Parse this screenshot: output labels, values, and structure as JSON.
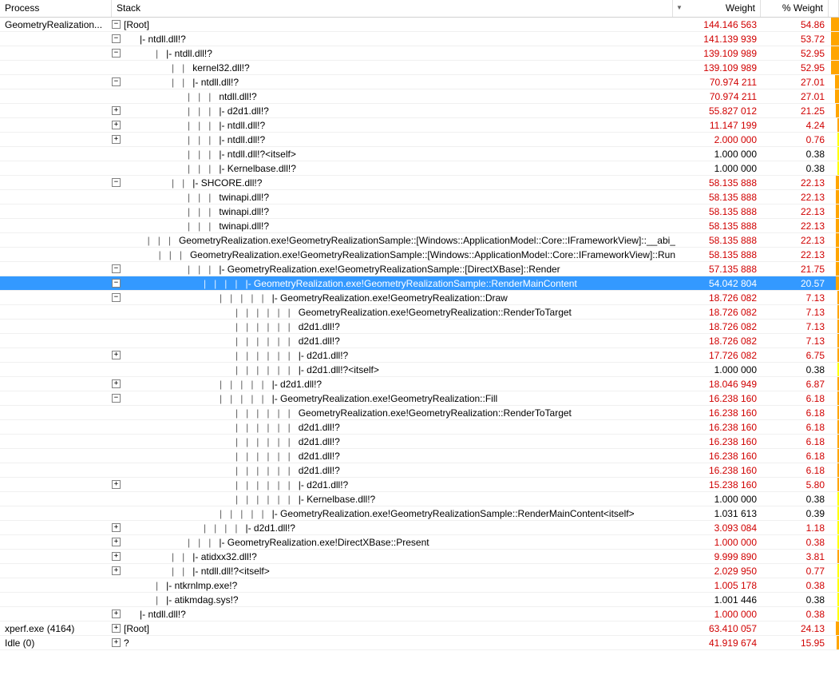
{
  "headers": {
    "process": "Process",
    "stack": "Stack",
    "weight": "Weight",
    "pct": "% Weight"
  },
  "colors": {
    "highlight": "#d00000",
    "selection_bg": "#3399ff",
    "bar_orange": "#ffa500",
    "bar_yellow": "#ffff00"
  },
  "bar_max": 54.86,
  "rows": [
    {
      "process": "GeometryRealization...",
      "exp": "-",
      "indent": 0,
      "pipes": "",
      "label": "[Root]",
      "weight": "144.146 563",
      "pct": "54.86",
      "hl": true,
      "bar": 54.86
    },
    {
      "process": "",
      "exp": "-",
      "indent": 1,
      "pipes": "",
      "label": "|- ntdll.dll!?",
      "weight": "141.139 939",
      "pct": "53.72",
      "hl": true,
      "bar": 53.72
    },
    {
      "process": "",
      "exp": "-",
      "indent": 2,
      "pipes": "|   ",
      "label": "|- ntdll.dll!?",
      "weight": "139.109 989",
      "pct": "52.95",
      "hl": true,
      "bar": 52.95
    },
    {
      "process": "",
      "exp": "",
      "indent": 3,
      "pipes": "|   |   ",
      "label": "kernel32.dll!?",
      "weight": "139.109 989",
      "pct": "52.95",
      "hl": true,
      "bar": 52.95
    },
    {
      "process": "",
      "exp": "-",
      "indent": 3,
      "pipes": "|   |   ",
      "label": "|- ntdll.dll!?",
      "weight": "70.974 211",
      "pct": "27.01",
      "hl": true,
      "bar": 27.01
    },
    {
      "process": "",
      "exp": "",
      "indent": 4,
      "pipes": "|   |   |   ",
      "label": "ntdll.dll!?",
      "weight": "70.974 211",
      "pct": "27.01",
      "hl": true,
      "bar": 27.01
    },
    {
      "process": "",
      "exp": "+",
      "indent": 4,
      "pipes": "|   |   |   ",
      "label": "|- d2d1.dll!?",
      "weight": "55.827 012",
      "pct": "21.25",
      "hl": true,
      "bar": 21.25
    },
    {
      "process": "",
      "exp": "+",
      "indent": 4,
      "pipes": "|   |   |   ",
      "label": "|- ntdll.dll!?",
      "weight": "11.147 199",
      "pct": "4.24",
      "hl": true,
      "bar": 4.24
    },
    {
      "process": "",
      "exp": "+",
      "indent": 4,
      "pipes": "|   |   |   ",
      "label": "|- ntdll.dll!?",
      "weight": "2.000 000",
      "pct": "0.76",
      "hl": true,
      "bar": 0.76
    },
    {
      "process": "",
      "exp": "",
      "indent": 4,
      "pipes": "|   |   |   ",
      "label": "|- ntdll.dll!?<itself>",
      "weight": "1.000 000",
      "pct": "0.38",
      "hl": false,
      "bar": 0.38
    },
    {
      "process": "",
      "exp": "",
      "indent": 4,
      "pipes": "|   |   |   ",
      "label": "|- Kernelbase.dll!?",
      "weight": "1.000 000",
      "pct": "0.38",
      "hl": false,
      "bar": 0.38
    },
    {
      "process": "",
      "exp": "-",
      "indent": 3,
      "pipes": "|   |   ",
      "label": "|- SHCORE.dll!?",
      "weight": "58.135 888",
      "pct": "22.13",
      "hl": true,
      "bar": 22.13
    },
    {
      "process": "",
      "exp": "",
      "indent": 4,
      "pipes": "|   |   |   ",
      "label": "twinapi.dll!?",
      "weight": "58.135 888",
      "pct": "22.13",
      "hl": true,
      "bar": 22.13
    },
    {
      "process": "",
      "exp": "",
      "indent": 4,
      "pipes": "|   |   |   ",
      "label": "twinapi.dll!?",
      "weight": "58.135 888",
      "pct": "22.13",
      "hl": true,
      "bar": 22.13
    },
    {
      "process": "",
      "exp": "",
      "indent": 4,
      "pipes": "|   |   |   ",
      "label": "twinapi.dll!?",
      "weight": "58.135 888",
      "pct": "22.13",
      "hl": true,
      "bar": 22.13
    },
    {
      "process": "",
      "exp": "",
      "indent": 4,
      "pipes": "|   |   |   ",
      "label": "GeometryRealization.exe!GeometryRealizationSample::[Windows::ApplicationModel::Core::IFrameworkView]::__abi_",
      "weight": "58.135 888",
      "pct": "22.13",
      "hl": true,
      "bar": 22.13
    },
    {
      "process": "",
      "exp": "",
      "indent": 4,
      "pipes": "|   |   |   ",
      "label": "GeometryRealization.exe!GeometryRealizationSample::[Windows::ApplicationModel::Core::IFrameworkView]::Run",
      "weight": "58.135 888",
      "pct": "22.13",
      "hl": true,
      "bar": 22.13
    },
    {
      "process": "",
      "exp": "-",
      "indent": 4,
      "pipes": "|   |   |   ",
      "label": "|- GeometryRealization.exe!GeometryRealizationSample::[DirectXBase]::Render",
      "weight": "57.135 888",
      "pct": "21.75",
      "hl": true,
      "bar": 21.75
    },
    {
      "process": "",
      "exp": "-",
      "indent": 5,
      "pipes": "|   |   |   |   ",
      "label": "|- GeometryRealization.exe!GeometryRealizationSample::RenderMainContent",
      "weight": "54.042 804",
      "pct": "20.57",
      "hl": true,
      "bar": 20.57,
      "sel": true
    },
    {
      "process": "",
      "exp": "-",
      "indent": 6,
      "pipes": "|   |   |   |   |   ",
      "label": "|- GeometryRealization.exe!GeometryRealization::Draw",
      "weight": "18.726 082",
      "pct": "7.13",
      "hl": true,
      "bar": 7.13
    },
    {
      "process": "",
      "exp": "",
      "indent": 7,
      "pipes": "|   |   |   |   |   |   ",
      "label": "GeometryRealization.exe!GeometryRealization::RenderToTarget",
      "weight": "18.726 082",
      "pct": "7.13",
      "hl": true,
      "bar": 7.13
    },
    {
      "process": "",
      "exp": "",
      "indent": 7,
      "pipes": "|   |   |   |   |   |   ",
      "label": "d2d1.dll!?",
      "weight": "18.726 082",
      "pct": "7.13",
      "hl": true,
      "bar": 7.13
    },
    {
      "process": "",
      "exp": "",
      "indent": 7,
      "pipes": "|   |   |   |   |   |   ",
      "label": "d2d1.dll!?",
      "weight": "18.726 082",
      "pct": "7.13",
      "hl": true,
      "bar": 7.13
    },
    {
      "process": "",
      "exp": "+",
      "indent": 7,
      "pipes": "|   |   |   |   |   |   ",
      "label": "|- d2d1.dll!?",
      "weight": "17.726 082",
      "pct": "6.75",
      "hl": true,
      "bar": 6.75
    },
    {
      "process": "",
      "exp": "",
      "indent": 7,
      "pipes": "|   |   |   |   |   |   ",
      "label": "|- d2d1.dll!?<itself>",
      "weight": "1.000 000",
      "pct": "0.38",
      "hl": false,
      "bar": 0.38
    },
    {
      "process": "",
      "exp": "+",
      "indent": 6,
      "pipes": "|   |   |   |   |   ",
      "label": "|- d2d1.dll!?",
      "weight": "18.046 949",
      "pct": "6.87",
      "hl": true,
      "bar": 6.87
    },
    {
      "process": "",
      "exp": "-",
      "indent": 6,
      "pipes": "|   |   |   |   |   ",
      "label": "|- GeometryRealization.exe!GeometryRealization::Fill",
      "weight": "16.238 160",
      "pct": "6.18",
      "hl": true,
      "bar": 6.18
    },
    {
      "process": "",
      "exp": "",
      "indent": 7,
      "pipes": "|   |   |   |   |   |   ",
      "label": "GeometryRealization.exe!GeometryRealization::RenderToTarget",
      "weight": "16.238 160",
      "pct": "6.18",
      "hl": true,
      "bar": 6.18
    },
    {
      "process": "",
      "exp": "",
      "indent": 7,
      "pipes": "|   |   |   |   |   |   ",
      "label": "d2d1.dll!?",
      "weight": "16.238 160",
      "pct": "6.18",
      "hl": true,
      "bar": 6.18
    },
    {
      "process": "",
      "exp": "",
      "indent": 7,
      "pipes": "|   |   |   |   |   |   ",
      "label": "d2d1.dll!?",
      "weight": "16.238 160",
      "pct": "6.18",
      "hl": true,
      "bar": 6.18
    },
    {
      "process": "",
      "exp": "",
      "indent": 7,
      "pipes": "|   |   |   |   |   |   ",
      "label": "d2d1.dll!?",
      "weight": "16.238 160",
      "pct": "6.18",
      "hl": true,
      "bar": 6.18
    },
    {
      "process": "",
      "exp": "",
      "indent": 7,
      "pipes": "|   |   |   |   |   |   ",
      "label": "d2d1.dll!?",
      "weight": "16.238 160",
      "pct": "6.18",
      "hl": true,
      "bar": 6.18
    },
    {
      "process": "",
      "exp": "+",
      "indent": 7,
      "pipes": "|   |   |   |   |   |   ",
      "label": "|- d2d1.dll!?",
      "weight": "15.238 160",
      "pct": "5.80",
      "hl": true,
      "bar": 5.8
    },
    {
      "process": "",
      "exp": "",
      "indent": 7,
      "pipes": "|   |   |   |   |   |   ",
      "label": "|- Kernelbase.dll!?",
      "weight": "1.000 000",
      "pct": "0.38",
      "hl": false,
      "bar": 0.38
    },
    {
      "process": "",
      "exp": "",
      "indent": 6,
      "pipes": "|   |   |   |   |   ",
      "label": "|- GeometryRealization.exe!GeometryRealizationSample::RenderMainContent<itself>",
      "weight": "1.031 613",
      "pct": "0.39",
      "hl": false,
      "bar": 0.39
    },
    {
      "process": "",
      "exp": "+",
      "indent": 5,
      "pipes": "|   |   |   |   ",
      "label": "|- d2d1.dll!?",
      "weight": "3.093 084",
      "pct": "1.18",
      "hl": true,
      "bar": 1.18
    },
    {
      "process": "",
      "exp": "+",
      "indent": 4,
      "pipes": "|   |   |   ",
      "label": "|- GeometryRealization.exe!DirectXBase::Present",
      "weight": "1.000 000",
      "pct": "0.38",
      "hl": true,
      "bar": 0.38
    },
    {
      "process": "",
      "exp": "+",
      "indent": 3,
      "pipes": "|   |   ",
      "label": "|- atidxx32.dll!?",
      "weight": "9.999 890",
      "pct": "3.81",
      "hl": true,
      "bar": 3.81
    },
    {
      "process": "",
      "exp": "+",
      "indent": 3,
      "pipes": "|   |   ",
      "label": "|- ntdll.dll!?<itself>",
      "weight": "2.029 950",
      "pct": "0.77",
      "hl": true,
      "bar": 0.77
    },
    {
      "process": "",
      "exp": "",
      "indent": 2,
      "pipes": "|   ",
      "label": "|- ntkrnlmp.exe!?",
      "weight": "1.005 178",
      "pct": "0.38",
      "hl": true,
      "bar": 0.38
    },
    {
      "process": "",
      "exp": "",
      "indent": 2,
      "pipes": "|   ",
      "label": "|- atikmdag.sys!?",
      "weight": "1.001 446",
      "pct": "0.38",
      "hl": false,
      "bar": 0.38
    },
    {
      "process": "",
      "exp": "+",
      "indent": 1,
      "pipes": "",
      "label": "|- ntdll.dll!?",
      "weight": "1.000 000",
      "pct": "0.38",
      "hl": true,
      "bar": 0.38
    },
    {
      "process": "xperf.exe (4164)",
      "exp": "+",
      "indent": 0,
      "pipes": "",
      "label": "[Root]",
      "weight": "63.410 057",
      "pct": "24.13",
      "hl": true,
      "bar": 24.13
    },
    {
      "process": "Idle (0)",
      "exp": "+",
      "indent": 0,
      "pipes": "",
      "label": "?",
      "weight": "41.919 674",
      "pct": "15.95",
      "hl": true,
      "bar": 15.95
    }
  ]
}
